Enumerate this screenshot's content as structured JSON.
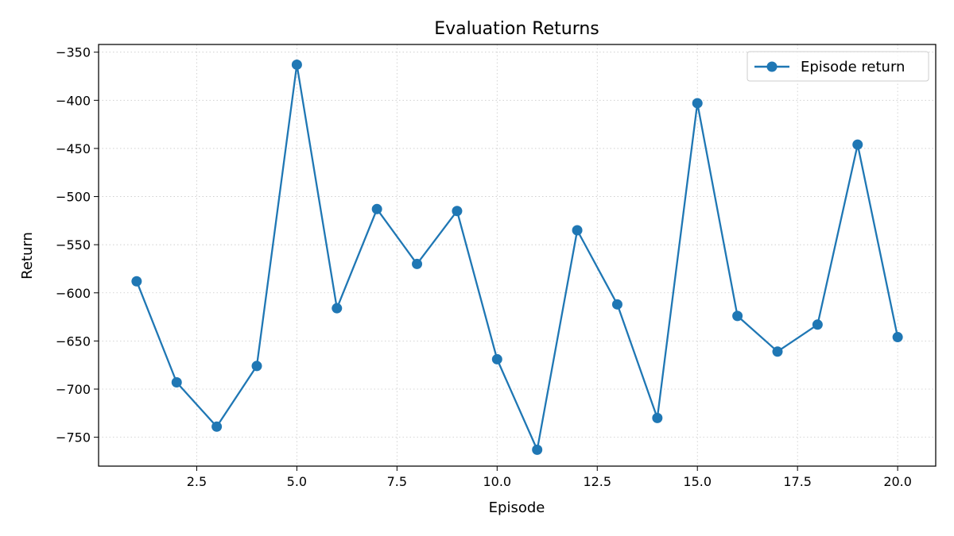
{
  "chart_data": {
    "type": "line",
    "title": "Evaluation Returns",
    "xlabel": "Episode",
    "ylabel": "Return",
    "xlim": [
      0.05,
      20.95
    ],
    "ylim": [
      -780,
      -342
    ],
    "xticks": [
      2.5,
      5.0,
      7.5,
      10.0,
      12.5,
      15.0,
      17.5,
      20.0
    ],
    "xtick_labels": [
      "2.5",
      "5.0",
      "7.5",
      "10.0",
      "12.5",
      "15.0",
      "17.5",
      "20.0"
    ],
    "yticks": [
      -750,
      -700,
      -650,
      -600,
      -550,
      -500,
      -450,
      -400,
      -350
    ],
    "ytick_labels": [
      "−750",
      "−700",
      "−650",
      "−600",
      "−550",
      "−500",
      "−450",
      "−400",
      "−350"
    ],
    "grid": true,
    "legend_position": "top-right",
    "series": [
      {
        "name": "Episode return",
        "color": "#1f77b4",
        "marker": "circle",
        "x": [
          1,
          2,
          3,
          4,
          5,
          6,
          7,
          8,
          9,
          10,
          11,
          12,
          13,
          14,
          15,
          16,
          17,
          18,
          19,
          20
        ],
        "y": [
          -588,
          -693,
          -739,
          -676,
          -363,
          -616,
          -513,
          -570,
          -515,
          -669,
          -763,
          -535,
          -612,
          -730,
          -403,
          -624,
          -661,
          -633,
          -446,
          -646
        ]
      }
    ]
  }
}
